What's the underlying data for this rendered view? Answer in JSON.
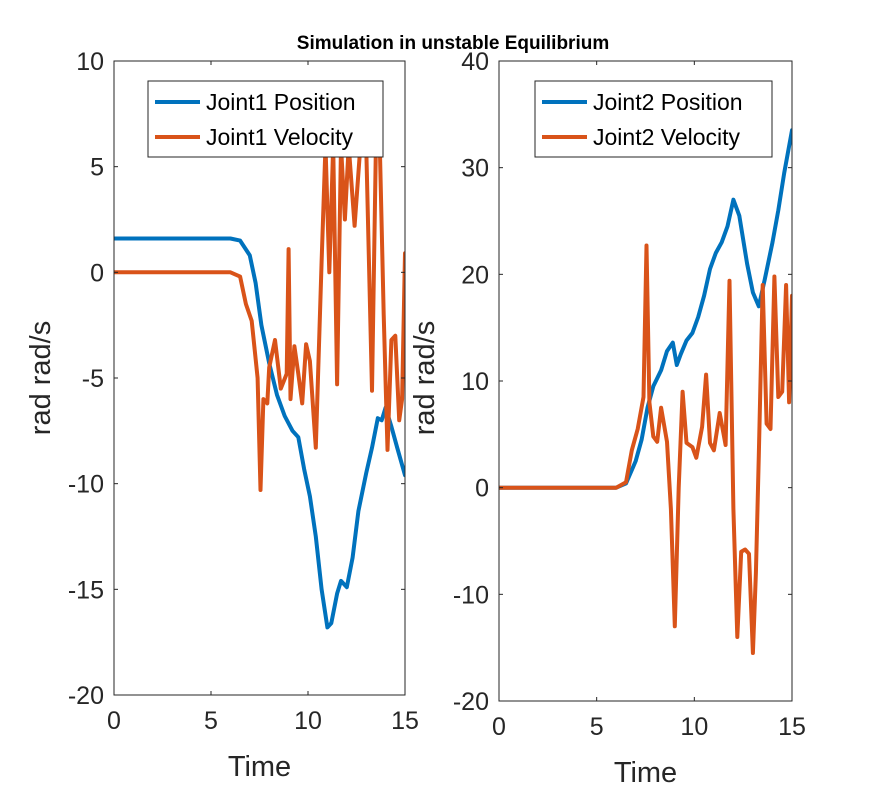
{
  "figure_title": "Simulation in unstable Equilibrium",
  "chart_data": [
    {
      "type": "line",
      "title": "",
      "xlabel": "Time",
      "ylabel": "rad rad/s",
      "xlim": [
        0,
        15
      ],
      "ylim": [
        -20,
        10
      ],
      "xticks": [
        0,
        5,
        10,
        15
      ],
      "yticks": [
        -20,
        -15,
        -10,
        -5,
        0,
        5,
        10
      ],
      "xtick_labels": [
        "0",
        "5",
        "10",
        "15"
      ],
      "ytick_labels": [
        "-20",
        "-15",
        "-10",
        "-5",
        "0",
        "5",
        "10"
      ],
      "grid": false,
      "legend_location": "top-right",
      "series": [
        {
          "name": "Joint1 Position",
          "color": "#0072BD",
          "x": [
            0,
            6.0,
            6.5,
            7.0,
            7.3,
            7.6,
            8.0,
            8.4,
            8.8,
            9.2,
            9.5,
            9.8,
            10.1,
            10.4,
            10.7,
            11.0,
            11.2,
            11.5,
            11.7,
            12.0,
            12.3,
            12.6,
            13.0,
            13.3,
            13.6,
            13.8,
            14.0,
            14.3,
            14.6,
            15.0
          ],
          "y": [
            1.6,
            1.6,
            1.5,
            0.8,
            -0.5,
            -2.5,
            -4.3,
            -5.8,
            -6.8,
            -7.5,
            -7.8,
            -9.3,
            -10.6,
            -12.5,
            -15.0,
            -16.8,
            -16.6,
            -15.2,
            -14.6,
            -14.9,
            -13.5,
            -11.3,
            -9.5,
            -8.3,
            -6.9,
            -7.0,
            -6.4,
            -7.3,
            -8.3,
            -9.6
          ]
        },
        {
          "name": "Joint1 Velocity",
          "color": "#D95319",
          "x": [
            0,
            6.0,
            6.5,
            6.8,
            7.1,
            7.4,
            7.55,
            7.7,
            7.9,
            8.0,
            8.3,
            8.6,
            8.9,
            9.0,
            9.1,
            9.3,
            9.5,
            9.7,
            9.9,
            10.1,
            10.4,
            10.7,
            10.9,
            11.1,
            11.3,
            11.5,
            11.7,
            11.9,
            12.1,
            12.4,
            12.7,
            13.0,
            13.3,
            13.5,
            13.7,
            13.9,
            14.1,
            14.3,
            14.5,
            14.7,
            14.85,
            15.0
          ],
          "y": [
            0,
            0,
            -0.2,
            -1.5,
            -2.3,
            -5.0,
            -10.3,
            -6.0,
            -6.2,
            -4.5,
            -3.2,
            -5.5,
            -4.8,
            1.1,
            -6.0,
            -3.5,
            -4.8,
            -6.2,
            -3.4,
            -4.2,
            -8.3,
            0.5,
            6.0,
            0.0,
            6.0,
            -5.3,
            6.0,
            2.5,
            6.0,
            2.2,
            6.0,
            6.0,
            -5.6,
            6.0,
            6.0,
            -2.0,
            -8.4,
            -3.2,
            -3.0,
            -7.0,
            -6.0,
            0.9
          ]
        }
      ]
    },
    {
      "type": "line",
      "title": "",
      "xlabel": "Time",
      "ylabel": "rad rad/s",
      "xlim": [
        0,
        15
      ],
      "ylim": [
        -20,
        40
      ],
      "xticks": [
        0,
        5,
        10,
        15
      ],
      "yticks": [
        -20,
        -10,
        0,
        10,
        20,
        30,
        40
      ],
      "xtick_labels": [
        "0",
        "5",
        "10",
        "15"
      ],
      "ytick_labels": [
        "-20",
        "-10",
        "0",
        "10",
        "20",
        "30",
        "40"
      ],
      "grid": false,
      "legend_location": "top-right",
      "series": [
        {
          "name": "Joint2 Position",
          "color": "#0072BD",
          "x": [
            0,
            6.0,
            6.5,
            7.0,
            7.3,
            7.6,
            7.9,
            8.3,
            8.6,
            8.9,
            9.1,
            9.3,
            9.6,
            9.9,
            10.2,
            10.5,
            10.8,
            11.1,
            11.4,
            11.7,
            12.0,
            12.3,
            12.7,
            13.0,
            13.3,
            13.6,
            14.0,
            14.3,
            14.6,
            15.0
          ],
          "y": [
            0,
            0,
            0.4,
            2.5,
            4.5,
            7.5,
            9.5,
            11.0,
            12.8,
            13.6,
            11.5,
            12.5,
            13.8,
            14.5,
            16.0,
            18.0,
            20.5,
            22.0,
            23.0,
            24.5,
            27.0,
            25.5,
            21.0,
            18.3,
            17.0,
            19.5,
            23.0,
            26.0,
            29.5,
            33.5
          ]
        },
        {
          "name": "Joint2 Velocity",
          "color": "#D95319",
          "x": [
            0,
            6.0,
            6.5,
            6.8,
            7.1,
            7.4,
            7.55,
            7.7,
            7.9,
            8.1,
            8.3,
            8.6,
            8.8,
            9.0,
            9.2,
            9.4,
            9.6,
            9.9,
            10.1,
            10.4,
            10.6,
            10.8,
            11.0,
            11.3,
            11.6,
            11.8,
            12.0,
            12.2,
            12.4,
            12.6,
            12.8,
            13.0,
            13.15,
            13.3,
            13.5,
            13.7,
            13.9,
            14.1,
            14.3,
            14.5,
            14.7,
            14.85,
            15.0
          ],
          "y": [
            0,
            0,
            0.5,
            3.5,
            5.5,
            8.5,
            22.7,
            8.0,
            4.8,
            4.3,
            7.5,
            4.3,
            -2.0,
            -13.0,
            0.0,
            9.0,
            4.2,
            3.8,
            2.8,
            5.7,
            10.6,
            4.2,
            3.5,
            7.0,
            4.0,
            19.4,
            -2.0,
            -14.0,
            -6.0,
            -5.8,
            -6.2,
            -15.5,
            -8.0,
            3.0,
            19.0,
            6.0,
            5.5,
            19.8,
            8.5,
            9.0,
            19.0,
            8.0,
            18.0
          ]
        }
      ]
    }
  ]
}
